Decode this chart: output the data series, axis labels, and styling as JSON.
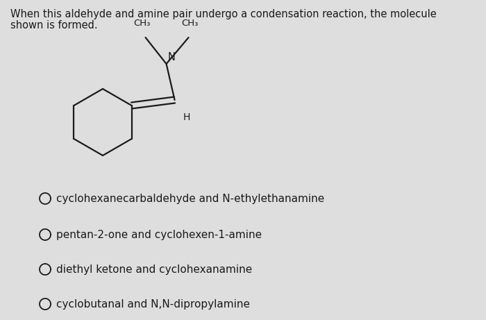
{
  "title_line1": "When this aldehyde and amine pair undergo a condensation reaction, the molecule",
  "title_line2": "shown is formed.",
  "options": [
    "cyclohexanecarbaldehyde and N-ethylethanamine",
    "pentan-2-one and cyclohexen-1-amine",
    "diethyl ketone and cyclohexanamine",
    "cyclobutanal and N,N-dipropylamine"
  ],
  "background_color": "#dedede",
  "text_color": "#1a1a1a",
  "title_fontsize": 10.5,
  "option_fontsize": 11.0
}
